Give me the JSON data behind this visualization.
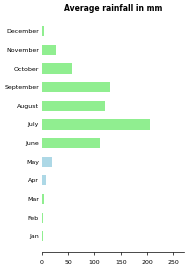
{
  "title": "Average rainfall in mm",
  "months": [
    "Jan",
    "Feb",
    "Mar",
    "Apr",
    "May",
    "June",
    "July",
    "August",
    "September",
    "October",
    "November",
    "December"
  ],
  "values": [
    2,
    2,
    4,
    9,
    20,
    110,
    205,
    120,
    130,
    58,
    28,
    5
  ],
  "bar_colors": [
    "#90ee90",
    "#90ee90",
    "#90ee90",
    "#add8e6",
    "#add8e6",
    "#90ee90",
    "#90ee90",
    "#90ee90",
    "#90ee90",
    "#90ee90",
    "#90ee90",
    "#90ee90"
  ],
  "xlim": [
    0,
    270
  ],
  "xticks": [
    0,
    50,
    100,
    150,
    200,
    250
  ],
  "title_fontsize": 5.5,
  "tick_fontsize": 4.5,
  "background_color": "#ffffff"
}
